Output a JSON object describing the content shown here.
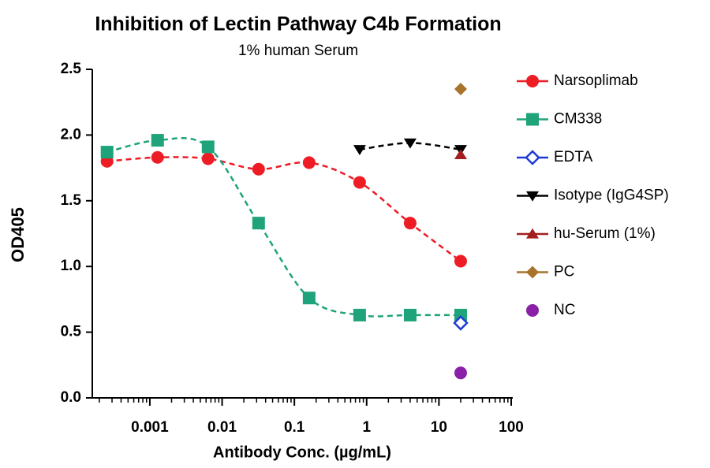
{
  "chart_data": {
    "type": "scatter",
    "title": "Inhibition of Lectin Pathway C4b Formation",
    "subtitle": "1% human Serum",
    "x_label": "Antibody Conc. (µg/mL)",
    "y_label": "OD405",
    "x_log": true,
    "x_minor_ticks": true,
    "xlim": [
      0.00016,
      100
    ],
    "xticks": [
      0.001,
      0.01,
      0.1,
      1,
      10,
      100
    ],
    "ylim": [
      0,
      2.5
    ],
    "yticks": [
      {
        "value": 0,
        "label": "0.0"
      },
      0.5,
      {
        "value": 1,
        "label": "1.0"
      },
      1.5,
      {
        "value": 2,
        "label": "2.0"
      },
      2.5
    ],
    "legend": "right",
    "series": [
      {
        "name": "Narsoplimab",
        "color": "#ee1c25",
        "marker": "circle",
        "line_style": "dashed",
        "legend_line": true,
        "x": [
          0.000256,
          0.00128,
          0.0064,
          0.032,
          0.16,
          0.8,
          4,
          20
        ],
        "values": [
          1.8,
          1.83,
          1.82,
          1.74,
          1.79,
          1.64,
          1.33,
          1.04
        ]
      },
      {
        "name": "CM338",
        "color": "#1fa37a",
        "marker": "square",
        "line_style": "dashed",
        "legend_line": true,
        "x": [
          0.000256,
          0.00128,
          0.0064,
          0.032,
          0.16,
          0.8,
          4,
          20
        ],
        "values": [
          1.87,
          1.96,
          1.91,
          1.33,
          0.76,
          0.63,
          0.63,
          0.63
        ]
      },
      {
        "name": "EDTA",
        "color": "#1f3bd6",
        "marker": "diamond-open",
        "legend_line": true,
        "x": [
          20
        ],
        "values": [
          0.57
        ]
      },
      {
        "name": "Isotype (IgG4SP)",
        "color": "#000000",
        "marker": "triangle-down",
        "line_style": "dashed",
        "legend_line": true,
        "x": [
          0.8,
          4,
          20
        ],
        "values": [
          1.89,
          1.94,
          1.89
        ]
      },
      {
        "name": "hu-Serum (1%)",
        "color": "#a31f1f",
        "marker": "triangle-up",
        "legend_line": true,
        "x": [
          20
        ],
        "values": [
          1.85
        ]
      },
      {
        "name": "PC",
        "color": "#a8732a",
        "marker": "diamond",
        "legend_line": true,
        "x": [
          20
        ],
        "values": [
          2.35
        ]
      },
      {
        "name": "NC",
        "color": "#8a1fa8",
        "marker": "circle",
        "legend_line": false,
        "x": [
          20
        ],
        "values": [
          0.19
        ]
      }
    ]
  }
}
